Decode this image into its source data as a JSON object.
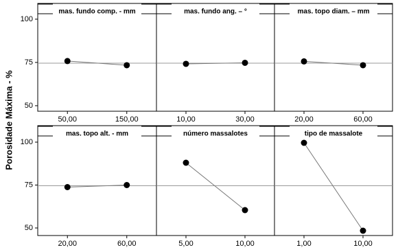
{
  "y_label": "Porosidade Máxima - %",
  "chart_data": [
    {
      "type": "line",
      "title": "mas. fundo comp. - mm",
      "categories": [
        "50,00",
        "150,00"
      ],
      "values": [
        75.8,
        73.4
      ],
      "ylim": [
        46.8,
        109.1
      ],
      "yticks": [
        50,
        75,
        100
      ],
      "hline": 74.6,
      "color": "#000000"
    },
    {
      "type": "line",
      "title": "mas. fundo ang. – °",
      "categories": [
        "10,00",
        "30,00"
      ],
      "values": [
        74.2,
        74.8
      ],
      "ylim": [
        46.8,
        109.1
      ],
      "hline": 74.6,
      "color": "#000000"
    },
    {
      "type": "line",
      "title": "mas. topo diam. – mm",
      "categories": [
        "20,00",
        "60,00"
      ],
      "values": [
        75.6,
        73.4
      ],
      "ylim": [
        46.8,
        109.1
      ],
      "hline": 74.6,
      "color": "#000000"
    },
    {
      "type": "line",
      "title": "mas. topo alt. - mm",
      "categories": [
        "20,00",
        "60,00"
      ],
      "values": [
        73.8,
        75.0
      ],
      "ylim": [
        45.6,
        109.6
      ],
      "yticks": [
        50,
        75,
        100
      ],
      "hline": 74.6,
      "color": "#000000"
    },
    {
      "type": "line",
      "title": "número massalotes",
      "categories": [
        "5,00",
        "10,00"
      ],
      "values": [
        88.0,
        60.4
      ],
      "ylim": [
        45.6,
        109.6
      ],
      "hline": 74.6,
      "color": "#000000"
    },
    {
      "type": "line",
      "title": "tipo de massalote",
      "categories": [
        "1,00",
        "10,00"
      ],
      "values": [
        99.6,
        48.4
      ],
      "ylim": [
        45.6,
        109.6
      ],
      "hline": 74.6,
      "color": "#000000"
    }
  ]
}
